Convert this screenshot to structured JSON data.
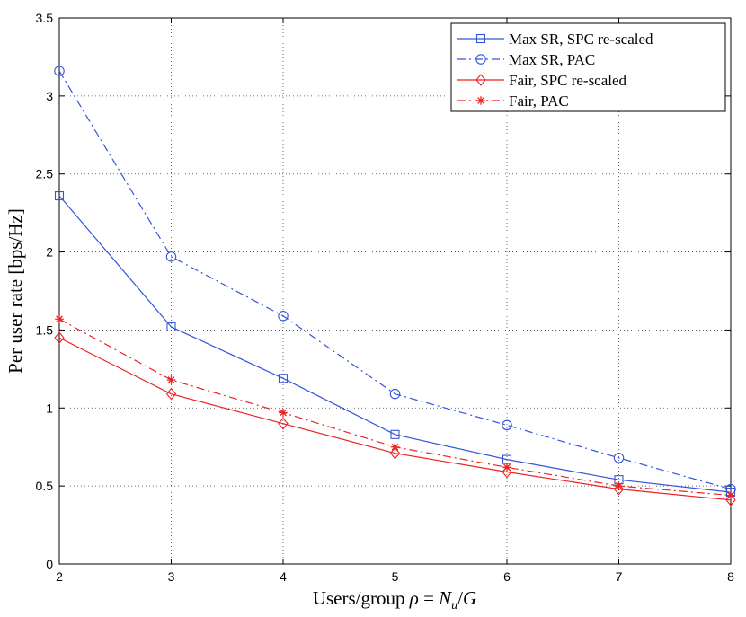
{
  "chart_data": {
    "type": "line",
    "title": "",
    "xlabel": "Users/group ρ = N_u/G",
    "ylabel": "Per user rate [bps/Hz]",
    "xlim": [
      2,
      8
    ],
    "ylim": [
      0,
      3.5
    ],
    "xticks": [
      2,
      3,
      4,
      5,
      6,
      7,
      8
    ],
    "yticks": [
      0,
      0.5,
      1,
      1.5,
      2,
      2.5,
      3,
      3.5
    ],
    "xtick_labels": [
      "2",
      "3",
      "4",
      "5",
      "6",
      "7",
      "8"
    ],
    "ytick_labels": [
      "0",
      "0.5",
      "1",
      "1.5",
      "2",
      "2.5",
      "3",
      "3.5"
    ],
    "grid": true,
    "legend_position": "top-right",
    "x": [
      2,
      3,
      4,
      5,
      6,
      7,
      8
    ],
    "series": [
      {
        "name": "Max SR, SPC re-scaled",
        "color": "#3355dd",
        "linestyle": "solid",
        "marker": "square",
        "values": [
          2.36,
          1.52,
          1.19,
          0.83,
          0.67,
          0.54,
          0.46
        ]
      },
      {
        "name": "Max SR, PAC",
        "color": "#3355dd",
        "linestyle": "dashdot",
        "marker": "circle",
        "values": [
          3.16,
          1.97,
          1.59,
          1.09,
          0.89,
          0.68,
          0.48
        ]
      },
      {
        "name": "Fair, SPC re-scaled",
        "color": "#ee2222",
        "linestyle": "solid",
        "marker": "diamond",
        "values": [
          1.45,
          1.09,
          0.9,
          0.71,
          0.59,
          0.48,
          0.41
        ]
      },
      {
        "name": "Fair, PAC",
        "color": "#ee2222",
        "linestyle": "dashdot",
        "marker": "asterisk",
        "values": [
          1.57,
          1.18,
          0.97,
          0.75,
          0.62,
          0.5,
          0.44
        ]
      }
    ]
  }
}
